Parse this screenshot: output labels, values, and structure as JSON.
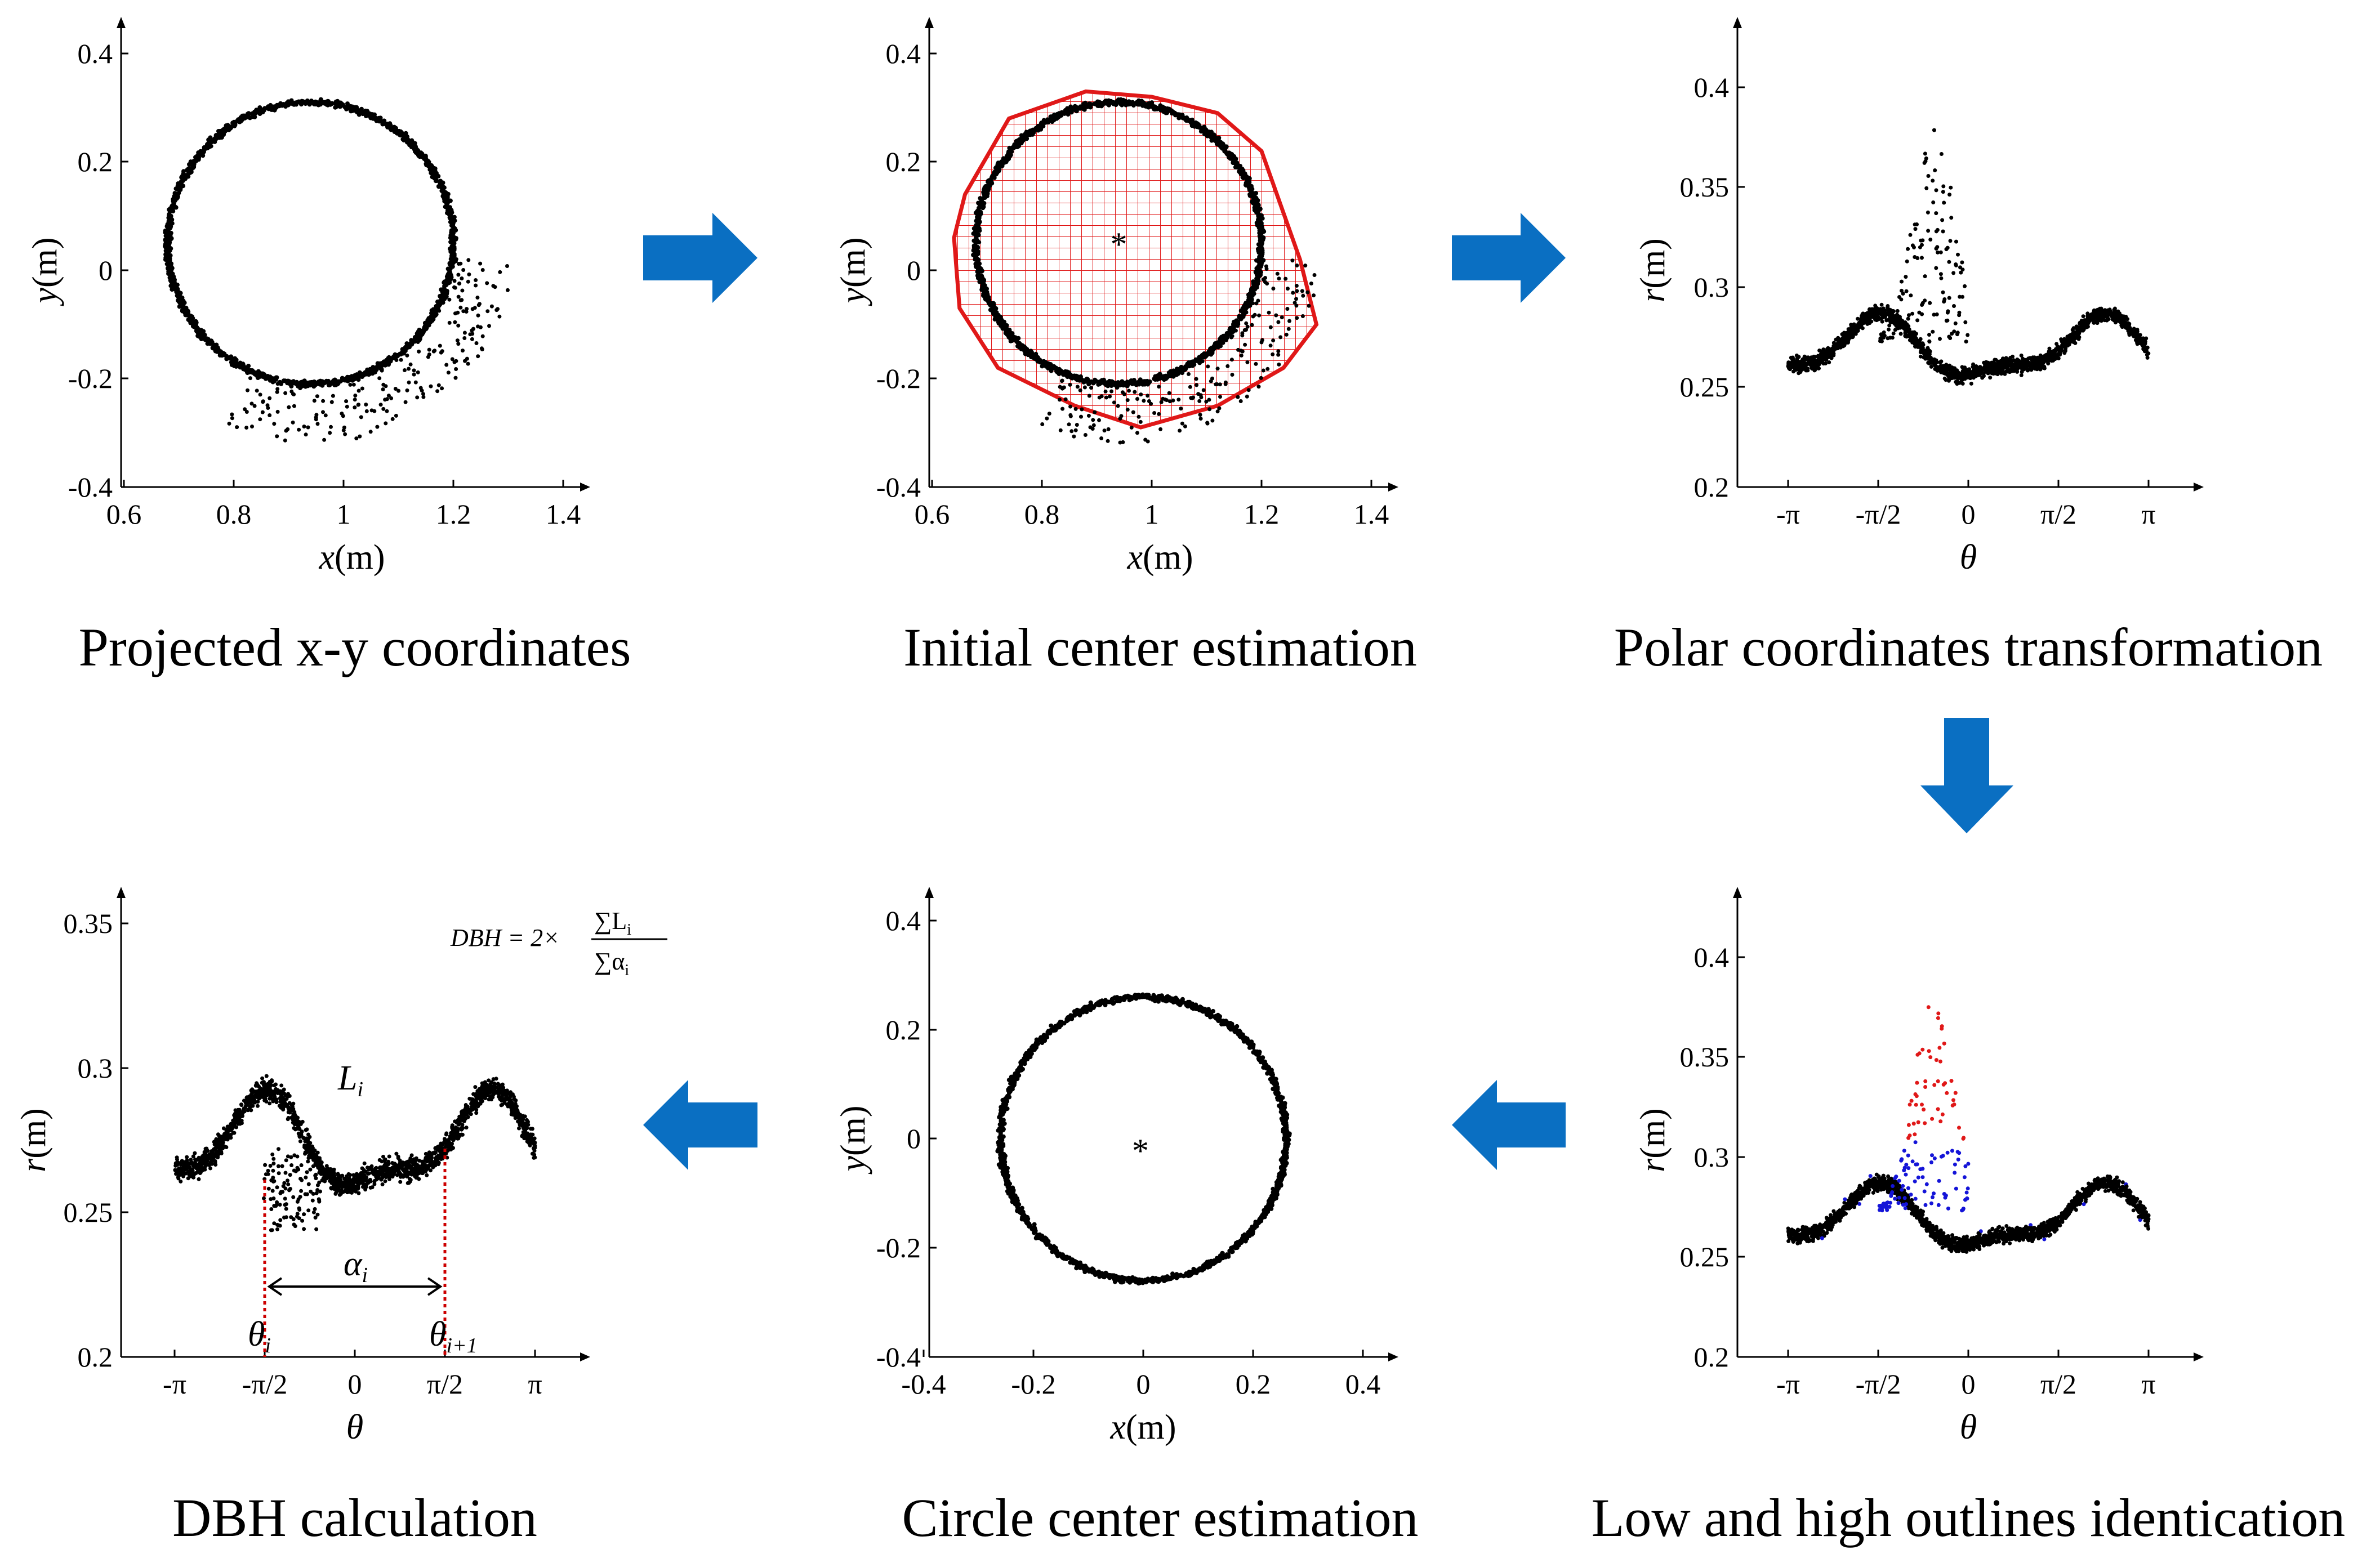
{
  "captions": [
    "Projected x-y coordinates",
    "Initial center estimation",
    "Polar coordinates transformation",
    "DBH calculation",
    "Circle center estimation",
    "Low and high outlines identication"
  ],
  "colors": {
    "arrow": "#0a6fc2",
    "polygon": "#e01818",
    "points": "#000000",
    "low": "#1414d8",
    "high": "#e01818",
    "marker": "#cc0000"
  },
  "panels": [
    {
      "id": "p1",
      "type": "scatter",
      "xlabel_var": "x",
      "xlabel_unit": "(m)",
      "ylabel_var": "y",
      "ylabel_unit": "(m)",
      "xlim": [
        0.6,
        1.4
      ],
      "ylim": [
        -0.4,
        0.4
      ],
      "xticks": [
        "0.6",
        "0.8",
        "1",
        "1.2",
        "1.4"
      ],
      "yticks": [
        "-0.4",
        "-0.2",
        "0",
        "0.2",
        "0.4"
      ],
      "circle": {
        "cx": 0.94,
        "cy": 0.05,
        "r": 0.26
      }
    },
    {
      "id": "p2",
      "type": "scatter",
      "xlabel_var": "x",
      "xlabel_unit": "(m)",
      "ylabel_var": "y",
      "ylabel_unit": "(m)",
      "xlim": [
        0.6,
        1.4
      ],
      "ylim": [
        -0.4,
        0.4
      ],
      "xticks": [
        "0.6",
        "0.8",
        "1",
        "1.2",
        "1.4"
      ],
      "yticks": [
        "-0.4",
        "-0.2",
        "0",
        "0.2",
        "0.4"
      ],
      "circle": {
        "cx": 0.94,
        "cy": 0.05,
        "r": 0.26
      },
      "center_mark": "*",
      "polygon": [
        [
          0.66,
          0.14
        ],
        [
          0.74,
          0.28
        ],
        [
          0.88,
          0.33
        ],
        [
          1.0,
          0.32
        ],
        [
          1.12,
          0.29
        ],
        [
          1.2,
          0.22
        ],
        [
          1.27,
          0.02
        ],
        [
          1.3,
          -0.1
        ],
        [
          1.24,
          -0.18
        ],
        [
          1.12,
          -0.25
        ],
        [
          0.98,
          -0.29
        ],
        [
          0.86,
          -0.25
        ],
        [
          0.72,
          -0.18
        ],
        [
          0.65,
          -0.07
        ],
        [
          0.64,
          0.06
        ]
      ]
    },
    {
      "id": "p3",
      "type": "scatter",
      "xlabel_var": "θ",
      "xlabel_unit": "",
      "ylabel_var": "r",
      "ylabel_unit": "(m)",
      "xlim": [
        -3.6,
        4.0
      ],
      "ylim": [
        0.2,
        0.42
      ],
      "xticks": [
        "-π",
        "-π/2",
        "0",
        "π/2",
        "π"
      ],
      "yticks": [
        "0.2",
        "0.25",
        "0.3",
        "0.35",
        "0.4"
      ]
    },
    {
      "id": "p4",
      "type": "scatter",
      "xlabel_var": "θ",
      "xlabel_unit": "",
      "ylabel_var": "r",
      "ylabel_unit": "(m)",
      "xlim": [
        -3.6,
        4.0
      ],
      "ylim": [
        0.2,
        0.355
      ],
      "xticks": [
        "-π",
        "-π/2",
        "0",
        "π/2",
        "π"
      ],
      "yticks": [
        "0.2",
        "0.25",
        "0.3",
        "0.35"
      ],
      "annotations": {
        "L": "L",
        "L_sub": "i",
        "alpha": "α",
        "alpha_sub": "i",
        "theta1": "θ",
        "theta1_sub": "i",
        "theta2": "θ",
        "theta2_sub": "i+1"
      },
      "formula": {
        "lhs": "DBH = 2×",
        "num": "∑L",
        "num_sub": "i",
        "den": "∑α",
        "den_sub": "i"
      }
    },
    {
      "id": "p5",
      "type": "scatter",
      "xlabel_var": "x",
      "xlabel_unit": "(m)",
      "ylabel_var": "y",
      "ylabel_unit": "(m)",
      "xlim": [
        -0.4,
        0.4
      ],
      "ylim": [
        -0.4,
        0.4
      ],
      "xticks": [
        "-0.4",
        "-0.2",
        "0",
        "0.2",
        "0.4"
      ],
      "yticks": [
        "-0.4",
        "-0.2",
        "0",
        "0.2",
        "0.4"
      ],
      "circle": {
        "cx": 0.0,
        "cy": 0.0,
        "r": 0.26
      },
      "center_mark": "*"
    },
    {
      "id": "p6",
      "type": "scatter",
      "xlabel_var": "θ",
      "xlabel_unit": "",
      "ylabel_var": "r",
      "ylabel_unit": "(m)",
      "xlim": [
        -3.6,
        4.0
      ],
      "ylim": [
        0.2,
        0.42
      ],
      "xticks": [
        "-π",
        "-π/2",
        "0",
        "π/2",
        "π"
      ],
      "yticks": [
        "0.2",
        "0.25",
        "0.3",
        "0.35",
        "0.4"
      ]
    }
  ]
}
